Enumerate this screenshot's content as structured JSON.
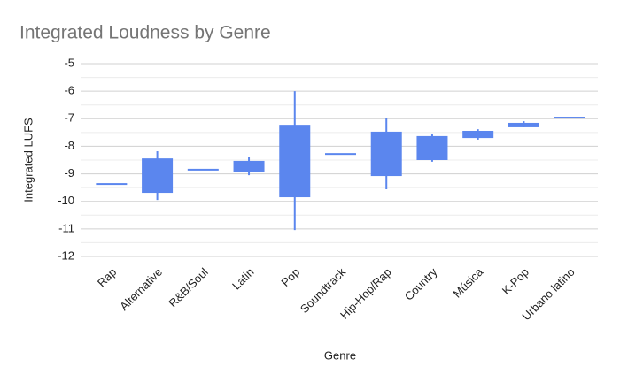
{
  "chart_data": {
    "type": "candlestick",
    "title": "Integrated Loudness by Genre",
    "x_label": "Genre",
    "y_label": "Integrated LUFS",
    "categories": [
      "Rap",
      "Alternative",
      "R&B/Soul",
      "Latin",
      "Pop",
      "Soundtrack",
      "Hip-Hop/Rap",
      "Country",
      "Música",
      "K-Pop",
      "Urbano latino"
    ],
    "low": [
      -9.37,
      -9.95,
      -8.85,
      -9.05,
      -11.04,
      -8.28,
      -9.56,
      -8.56,
      -7.76,
      -7.31,
      -6.96
    ],
    "open": [
      -9.37,
      -9.69,
      -8.85,
      -8.92,
      -9.85,
      -8.28,
      -9.08,
      -8.5,
      -7.7,
      -7.31,
      -6.96
    ],
    "close": [
      -9.37,
      -8.44,
      -8.85,
      -8.53,
      -7.22,
      -8.28,
      -7.47,
      -7.63,
      -7.44,
      -7.15,
      -6.96
    ],
    "high": [
      -9.37,
      -8.18,
      -8.85,
      -8.4,
      -6.0,
      -8.28,
      -6.99,
      -7.57,
      -7.38,
      -7.09,
      -6.96
    ],
    "color": "#5b86ee",
    "ylim": [
      -12,
      -5
    ],
    "yticks": [
      -12,
      -11,
      -10,
      -9,
      -8,
      -7,
      -6,
      -5
    ],
    "minor_yticks": [
      -11.5,
      -10.5,
      -9.5,
      -8.5,
      -7.5,
      -6.5,
      -5.5
    ],
    "grid": true
  }
}
